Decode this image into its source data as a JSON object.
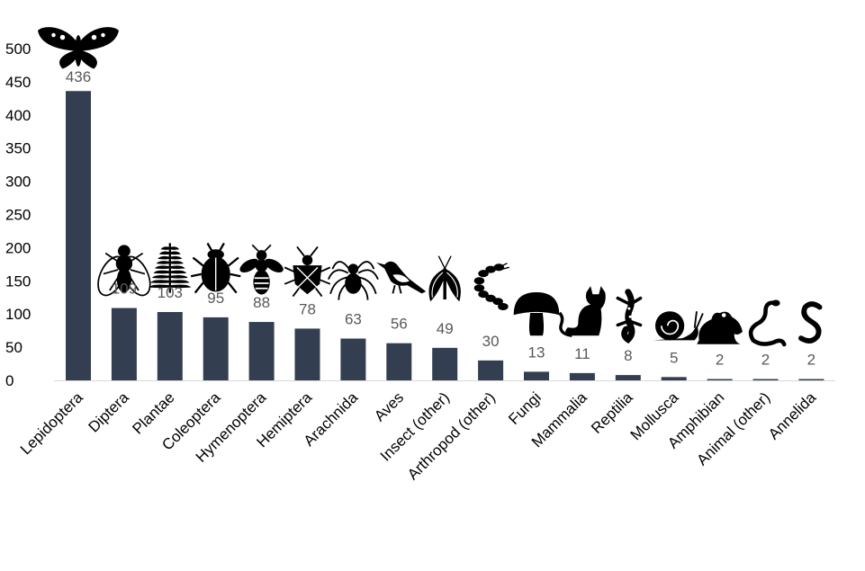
{
  "chart_data": {
    "type": "bar",
    "categories": [
      "Lepidoptera",
      "Diptera",
      "Plantae",
      "Coleoptera",
      "Hymenoptera",
      "Hemiptera",
      "Arachnida",
      "Aves",
      "Insect (other)",
      "Arthropod (other)",
      "Fungi",
      "Mammalia",
      "Reptilia",
      "Mollusca",
      "Amphibian",
      "Animal (other)",
      "Annelida"
    ],
    "values": [
      436,
      109,
      103,
      95,
      88,
      78,
      63,
      56,
      49,
      30,
      13,
      11,
      8,
      5,
      2,
      2,
      2
    ],
    "data_labels": [
      "436",
      "109",
      "103",
      "95",
      "88",
      "78",
      "63",
      "56",
      "49",
      "30",
      "13",
      "11",
      "8",
      "5",
      "2",
      "2",
      "2"
    ],
    "icons": [
      "moth-icon",
      "fly-icon",
      "fern-icon",
      "beetle-icon",
      "bee-icon",
      "stink-bug-icon",
      "spider-icon",
      "bird-icon",
      "winged-insect-icon",
      "millipede-icon",
      "mushroom-icon",
      "cat-icon",
      "gecko-icon",
      "snail-icon",
      "frog-icon",
      "snake-icon",
      "worm-icon"
    ],
    "yticks": [
      "0",
      "50",
      "100",
      "150",
      "200",
      "250",
      "300",
      "350",
      "400",
      "450",
      "500"
    ],
    "ylim": [
      0,
      500
    ],
    "bar_color": "#333f50",
    "grid": false,
    "legend": "none"
  }
}
